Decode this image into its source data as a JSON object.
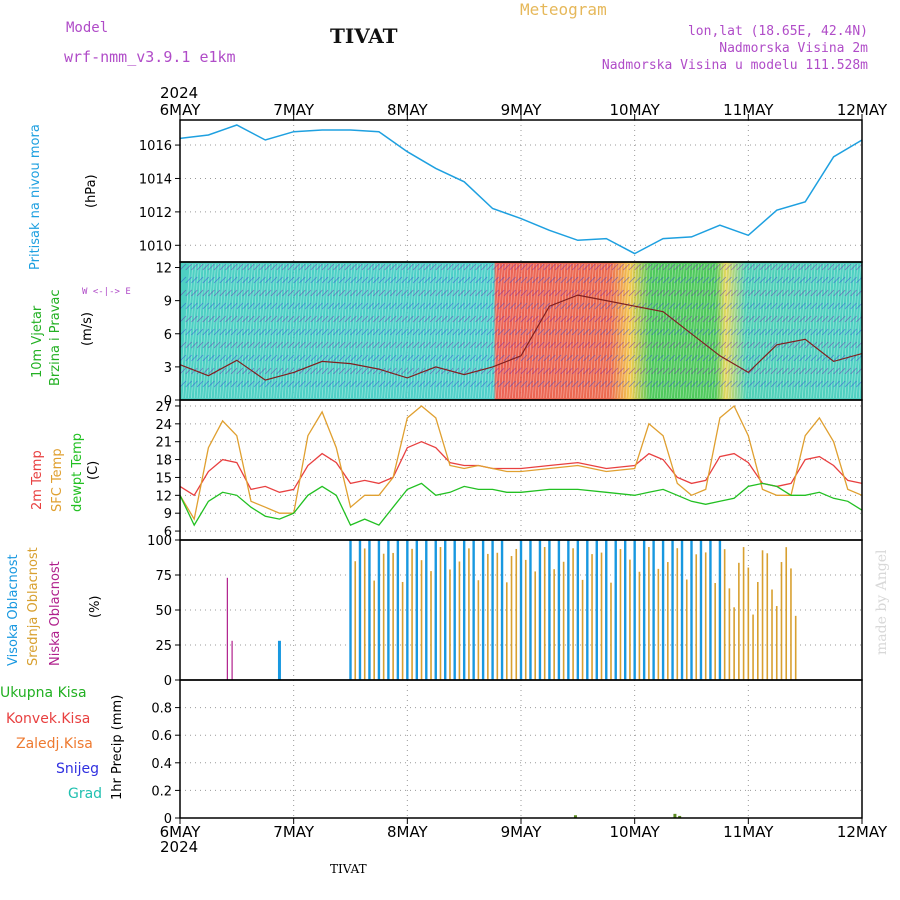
{
  "header": {
    "model_label": "Model",
    "model_name": "wrf-nmm_v3.9.1 e1km",
    "title": "TIVAT",
    "product": "Meteogram",
    "lonlat": "lon,lat (18.65E, 42.4N)",
    "elevation": "Nadmorska Visina 2m",
    "model_elevation": "Nadmorska Visina u modelu 111.528m",
    "year_top": "2024",
    "year_bottom": "2024",
    "footer": "TIVAT",
    "watermark": "made by Angel"
  },
  "colors": {
    "pressure": "#1ea0e0",
    "t2m": "#e84040",
    "sfc": "#e0a030",
    "dewpt": "#22c022",
    "high_cloud": "#1898e0",
    "mid_cloud": "#d8a030",
    "low_cloud": "#b0208c",
    "total_precip": "#22c022",
    "conv_precip": "#e84040",
    "frozen_precip": "#ee7a30",
    "snow": "#3030e0",
    "hail": "#20c0b0"
  },
  "date_ticks": [
    "6MAY",
    "7MAY",
    "8MAY",
    "9MAY",
    "10MAY",
    "11MAY",
    "12MAY"
  ],
  "panel_labels": {
    "pressure": {
      "name": "Pritisak na nivou mora",
      "unit": "(hPa)"
    },
    "wind": {
      "line1": "10m Vjetar",
      "line2": "Brzina i Pravac",
      "unit": "(m/s)",
      "compass": "W <-|-> E"
    },
    "temp": {
      "t2m": "2m Temp",
      "sfc": "SFC Temp",
      "dewpt": "dewpt Temp",
      "unit": "(C)"
    },
    "cloud": {
      "high": "Visoka Oblacnost",
      "mid": "Srednja Oblacnost",
      "low": "Niska Oblacnost",
      "unit": "(%)"
    },
    "precip": {
      "total": "Ukupna Kisa",
      "conv": "Konvek.Kisa",
      "frozen": "Zaledj.Kisa",
      "snow": "Snijeg",
      "hail": "Grad",
      "axis": "1hr Precip (mm)"
    }
  },
  "chart_data": [
    {
      "type": "line",
      "name": "pressure",
      "x_range": [
        "6MAY",
        "12MAY"
      ],
      "x_hours": [
        0,
        6,
        12,
        18,
        24,
        30,
        36,
        42,
        48,
        54,
        60,
        66,
        72,
        78,
        84,
        90,
        96,
        102,
        108,
        114,
        120,
        126,
        132,
        138,
        144
      ],
      "series": [
        {
          "name": "Pritisak na nivou mora",
          "values": [
            1016.4,
            1016.6,
            1017.2,
            1016.3,
            1016.8,
            1016.9,
            1016.9,
            1016.8,
            1015.6,
            1014.6,
            1013.8,
            1012.2,
            1011.6,
            1010.9,
            1010.3,
            1010.4,
            1009.5,
            1010.4,
            1010.5,
            1011.2,
            1010.6,
            1012.1,
            1012.6,
            1015.3,
            1016.3
          ]
        }
      ],
      "ylim": [
        1009,
        1017.5
      ],
      "yticks": [
        1010,
        1012,
        1014,
        1016
      ]
    },
    {
      "type": "line",
      "name": "wind",
      "x_range": [
        "6MAY",
        "12MAY"
      ],
      "x_hours": [
        0,
        6,
        12,
        18,
        24,
        30,
        36,
        42,
        48,
        54,
        60,
        66,
        72,
        78,
        84,
        90,
        96,
        102,
        108,
        114,
        120,
        126,
        132,
        138,
        144
      ],
      "series": [
        {
          "name": "10m Vjetar",
          "values": [
            3.2,
            2.2,
            3.6,
            1.8,
            2.5,
            3.5,
            3.3,
            2.8,
            2.0,
            3.0,
            2.3,
            3.0,
            4.0,
            8.5,
            9.5,
            9.0,
            8.5,
            8.0,
            6.0,
            4.0,
            2.5,
            5.0,
            5.5,
            3.5,
            4.2
          ]
        }
      ],
      "ylim": [
        0,
        12.5
      ],
      "yticks": [
        0,
        3,
        6,
        9,
        12
      ]
    },
    {
      "type": "line",
      "name": "temperature",
      "x_range": [
        "6MAY",
        "12MAY"
      ],
      "x_hours": [
        0,
        3,
        6,
        9,
        12,
        15,
        18,
        21,
        24,
        27,
        30,
        33,
        36,
        39,
        42,
        45,
        48,
        51,
        54,
        57,
        60,
        63,
        66,
        69,
        72,
        78,
        84,
        90,
        96,
        99,
        102,
        105,
        108,
        111,
        114,
        117,
        120,
        123,
        126,
        129,
        132,
        135,
        138,
        141,
        144
      ],
      "series": [
        {
          "name": "2m Temp",
          "values": [
            13.5,
            12,
            16,
            18,
            17.5,
            13,
            13.5,
            12.5,
            13,
            17,
            19,
            17.5,
            14,
            14.5,
            14,
            15,
            20,
            21,
            20,
            17.5,
            17,
            17,
            16.5,
            16.5,
            16.5,
            17,
            17.5,
            16.5,
            17,
            19,
            18,
            15,
            14,
            14.5,
            18.5,
            19,
            17.5,
            14,
            13.5,
            14,
            18,
            18.5,
            17,
            14.5,
            14
          ]
        },
        {
          "name": "SFC Temp",
          "values": [
            12,
            8,
            20,
            24.5,
            22,
            11,
            10,
            9,
            9,
            22,
            26,
            20,
            10,
            12,
            12,
            15,
            25,
            27,
            25,
            17,
            16.5,
            17,
            16.5,
            16,
            16,
            16.5,
            17,
            16,
            16.5,
            24,
            22,
            14,
            12,
            13,
            25,
            27,
            22,
            13,
            12,
            12,
            22,
            25,
            21,
            13,
            12
          ]
        },
        {
          "name": "dewpt Temp",
          "values": [
            12,
            7,
            11,
            12.5,
            12,
            10,
            8.5,
            8,
            9,
            12,
            13.5,
            12,
            7,
            8,
            7,
            10,
            13,
            14,
            12,
            12.5,
            13.5,
            13,
            13,
            12.5,
            12.5,
            13,
            13,
            12.5,
            12,
            12.5,
            13,
            12,
            11,
            10.5,
            11,
            11.5,
            13.5,
            14,
            13.5,
            12,
            12,
            12.5,
            11.5,
            11,
            9.5
          ]
        }
      ],
      "ylim": [
        4.5,
        28
      ],
      "yticks": [
        6,
        9,
        12,
        15,
        18,
        21,
        24,
        27
      ]
    },
    {
      "type": "bar",
      "name": "cloud",
      "x_range": [
        "6MAY",
        "12MAY"
      ],
      "series": [
        {
          "name": "Visoka Oblacnost",
          "segments_hours": [
            [
              36,
              68
            ],
            [
              72,
              115
            ]
          ],
          "value": 100,
          "spikes": [
            [
              21,
              28
            ]
          ]
        },
        {
          "name": "Srednja Oblacnost",
          "segments_hours": [
            [
              37,
              130
            ]
          ],
          "value": 95
        },
        {
          "name": "Niska Oblacnost",
          "spikes": [
            [
              10,
              73
            ],
            [
              11,
              28
            ]
          ]
        }
      ],
      "ylim": [
        0,
        100
      ],
      "yticks": [
        0,
        25,
        50,
        75,
        100
      ]
    },
    {
      "type": "bar",
      "name": "precip",
      "x_range": [
        "6MAY",
        "12MAY"
      ],
      "series": [
        {
          "name": "Ukupna Kisa",
          "spikes": [
            [
              83.5,
              0.02
            ],
            [
              104.5,
              0.03
            ],
            [
              105.5,
              0.015
            ]
          ]
        }
      ],
      "ylim": [
        0,
        1.0
      ],
      "yticks": [
        0,
        0.2,
        0.4,
        0.6,
        0.8
      ]
    }
  ]
}
